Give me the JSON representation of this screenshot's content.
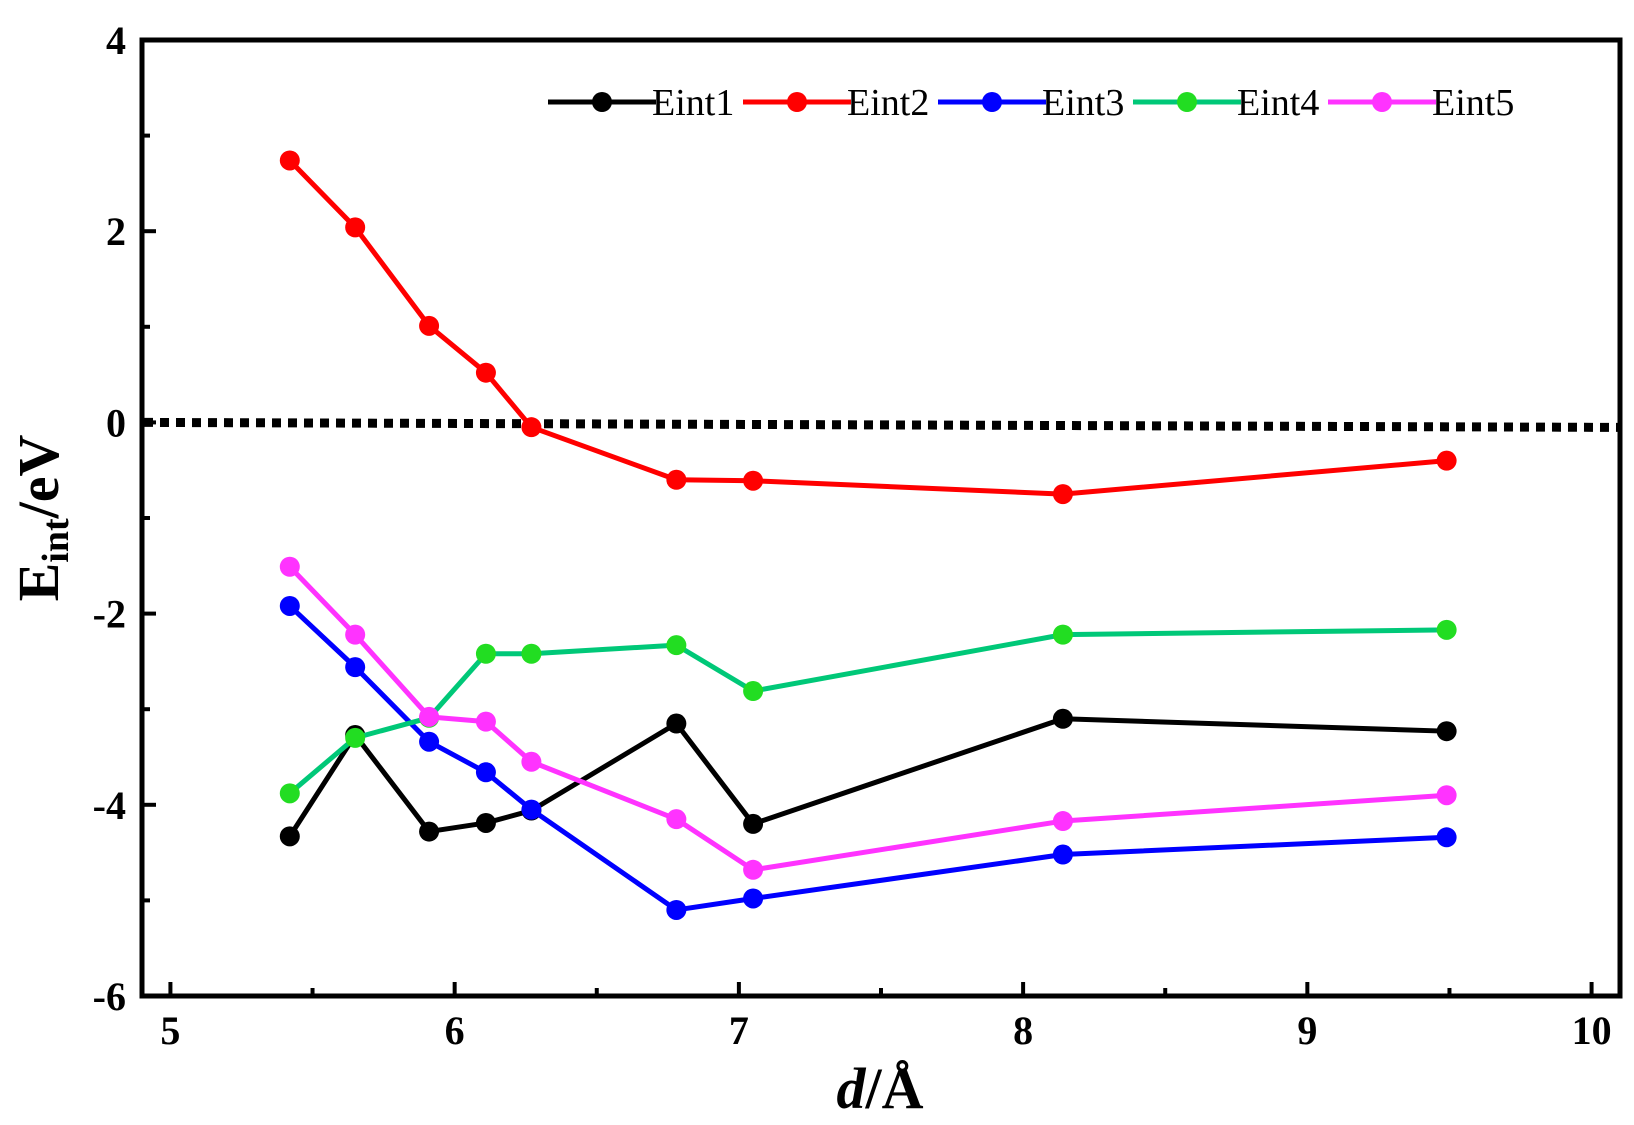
{
  "chart_data": {
    "type": "line",
    "title": "",
    "xlabel_italic": "d",
    "xlabel_unit": "/Å",
    "ylabel_main": "E",
    "ylabel_sub": "int",
    "ylabel_unit": "/eV",
    "xlim": [
      4.9,
      10.1
    ],
    "ylim": [
      -6,
      4
    ],
    "xticks": [
      5,
      6,
      7,
      8,
      9,
      10
    ],
    "yticks": [
      -6,
      -4,
      -2,
      0,
      2,
      4
    ],
    "legend_position": "top-right",
    "reference_line": {
      "y": 0,
      "style": "dotted"
    },
    "x": [
      5.42,
      5.65,
      5.91,
      6.11,
      6.27,
      6.78,
      7.05,
      8.14,
      9.49
    ],
    "series": [
      {
        "name": "Eint1",
        "color": "#000000",
        "values": [
          -4.33,
          -3.27,
          -4.28,
          -4.19,
          -4.06,
          -3.15,
          -4.2,
          -3.1,
          -3.23
        ]
      },
      {
        "name": "Eint2",
        "color": "#ff0000",
        "values": [
          2.74,
          2.04,
          1.01,
          0.52,
          -0.05,
          -0.6,
          -0.61,
          -0.75,
          -0.4
        ]
      },
      {
        "name": "Eint3",
        "color": "#0000ff",
        "values": [
          -1.92,
          -2.56,
          -3.34,
          -3.66,
          -4.05,
          -5.1,
          -4.98,
          -4.52,
          -4.34
        ]
      },
      {
        "name": "Eint4",
        "color": "#00c878",
        "marker_color": "#22dd22",
        "values": [
          -3.88,
          -3.3,
          -3.09,
          -2.42,
          -2.42,
          -2.33,
          -2.81,
          -2.22,
          -2.17
        ]
      },
      {
        "name": "Eint5",
        "color": "#ff33ff",
        "values": [
          -1.51,
          -2.22,
          -3.08,
          -3.13,
          -3.55,
          -4.15,
          -4.68,
          -4.17,
          -3.9
        ]
      }
    ]
  }
}
